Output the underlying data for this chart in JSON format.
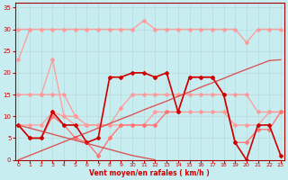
{
  "x": [
    0,
    1,
    2,
    3,
    4,
    5,
    6,
    7,
    8,
    9,
    10,
    11,
    12,
    13,
    14,
    15,
    16,
    17,
    18,
    19,
    20,
    21,
    22,
    23
  ],
  "series": [
    {
      "y": [
        30,
        30,
        30,
        30,
        30,
        30,
        30,
        30,
        30,
        30,
        30,
        32,
        30,
        30,
        30,
        30,
        30,
        30,
        30,
        30,
        27,
        30,
        30,
        30
      ],
      "color": "#FF9999",
      "alpha": 0.9,
      "linewidth": 1.0,
      "marker": "D",
      "markersize": 2.0
    },
    {
      "y": [
        23,
        30,
        null,
        null,
        null,
        null,
        null,
        null,
        null,
        null,
        null,
        null,
        null,
        null,
        null,
        null,
        null,
        null,
        null,
        null,
        null,
        null,
        null,
        null
      ],
      "color": "#FF9999",
      "alpha": 0.9,
      "linewidth": 1.0,
      "marker": "D",
      "markersize": 2.0
    },
    {
      "y": [
        null,
        null,
        15,
        23,
        10,
        10,
        null,
        null,
        null,
        null,
        null,
        null,
        null,
        null,
        null,
        null,
        null,
        null,
        null,
        null,
        null,
        null,
        null,
        null
      ],
      "color": "#FF9999",
      "alpha": 0.9,
      "linewidth": 1.0,
      "marker": "D",
      "markersize": 2.0
    },
    {
      "y": [
        15,
        15,
        15,
        15,
        15,
        10,
        8,
        8,
        8,
        12,
        15,
        15,
        15,
        15,
        15,
        15,
        15,
        15,
        15,
        15,
        15,
        11,
        11,
        11
      ],
      "color": "#FF9999",
      "alpha": 0.9,
      "linewidth": 1.0,
      "marker": "D",
      "markersize": 2.0
    },
    {
      "y": [
        8,
        8,
        8,
        11,
        10,
        8,
        8,
        8,
        8,
        8,
        8,
        8,
        11,
        11,
        11,
        11,
        11,
        11,
        11,
        8,
        8,
        8,
        11,
        11
      ],
      "color": "#FF9999",
      "alpha": 0.9,
      "linewidth": 1.0,
      "marker": "D",
      "markersize": 2.0
    },
    {
      "y": [
        8,
        5,
        5,
        10,
        8,
        5,
        4,
        1,
        5,
        8,
        8,
        8,
        8,
        11,
        11,
        19,
        19,
        19,
        15,
        4,
        4,
        7,
        7,
        11
      ],
      "color": "#FF7777",
      "alpha": 1.0,
      "linewidth": 1.0,
      "marker": "D",
      "markersize": 2.0
    },
    {
      "y": [
        8,
        5,
        5,
        11,
        8,
        8,
        4,
        5,
        19,
        19,
        20,
        20,
        19,
        20,
        11,
        19,
        19,
        19,
        15,
        4,
        0,
        8,
        8,
        1
      ],
      "color": "#CC0000",
      "alpha": 1.0,
      "linewidth": 1.2,
      "marker": "D",
      "markersize": 2.0
    },
    {
      "y": [
        8,
        7.3,
        6.6,
        5.9,
        5.2,
        4.5,
        3.8,
        3.1,
        2.4,
        1.7,
        1.0,
        0.5,
        0,
        null,
        null,
        null,
        null,
        null,
        null,
        null,
        null,
        null,
        null,
        null
      ],
      "color": "#DD3333",
      "alpha": 0.8,
      "linewidth": 1.0,
      "marker": null,
      "markersize": 0
    },
    {
      "y": [
        0,
        1.04,
        2.08,
        3.13,
        4.17,
        5.22,
        6.26,
        7.3,
        8.35,
        9.39,
        10.4,
        11.5,
        12.5,
        13.5,
        14.6,
        15.6,
        16.7,
        17.7,
        18.7,
        19.8,
        20.8,
        21.8,
        22.8,
        23.0
      ],
      "color": "#DD3333",
      "alpha": 0.8,
      "linewidth": 1.0,
      "marker": null,
      "markersize": 0
    }
  ],
  "xlim": [
    -0.3,
    23.3
  ],
  "ylim": [
    0,
    36
  ],
  "yticks": [
    0,
    5,
    10,
    15,
    20,
    25,
    30,
    35
  ],
  "xticks": [
    0,
    1,
    2,
    3,
    4,
    5,
    6,
    7,
    8,
    9,
    10,
    11,
    12,
    13,
    14,
    15,
    16,
    17,
    18,
    19,
    20,
    21,
    22,
    23
  ],
  "xlabel": "Vent moyen/en rafales ( km/h )",
  "bg_color": "#C8EDF0",
  "grid_color": "#BBDDDD",
  "tick_color": "#CC0000",
  "label_color": "#CC0000"
}
